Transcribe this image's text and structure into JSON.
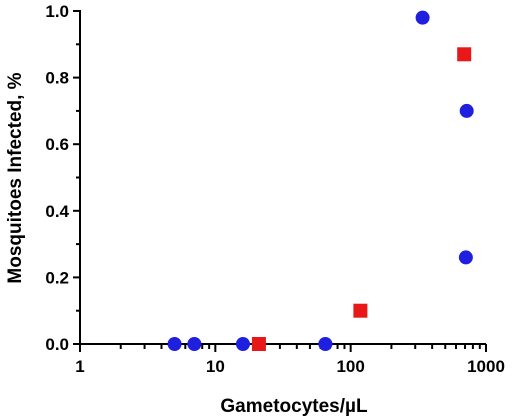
{
  "chart_data": {
    "type": "scatter",
    "title": "",
    "xlabel": "Gametocytes/µL",
    "ylabel": "Mosquitoes Infected, %",
    "xscale": "log",
    "xlim": [
      1,
      1000
    ],
    "ylim": [
      0,
      1.0
    ],
    "xticks": [
      "1",
      "10",
      "100",
      "1000"
    ],
    "yticks": [
      "0.0",
      "0.2",
      "0.4",
      "0.6",
      "0.8",
      "1.0"
    ],
    "grid": false,
    "legend": "none",
    "series": [
      {
        "marker": "circle",
        "color": "#1f1fe0",
        "points": [
          {
            "x": 5,
            "y": 0.0
          },
          {
            "x": 7,
            "y": 0.0
          },
          {
            "x": 16,
            "y": 0.0
          },
          {
            "x": 65,
            "y": 0.0
          },
          {
            "x": 340,
            "y": 0.98
          },
          {
            "x": 720,
            "y": 0.7
          },
          {
            "x": 710,
            "y": 0.26
          }
        ]
      },
      {
        "marker": "square",
        "color": "#e81818",
        "points": [
          {
            "x": 21,
            "y": 0.0
          },
          {
            "x": 118,
            "y": 0.1
          },
          {
            "x": 690,
            "y": 0.87
          }
        ]
      }
    ]
  }
}
